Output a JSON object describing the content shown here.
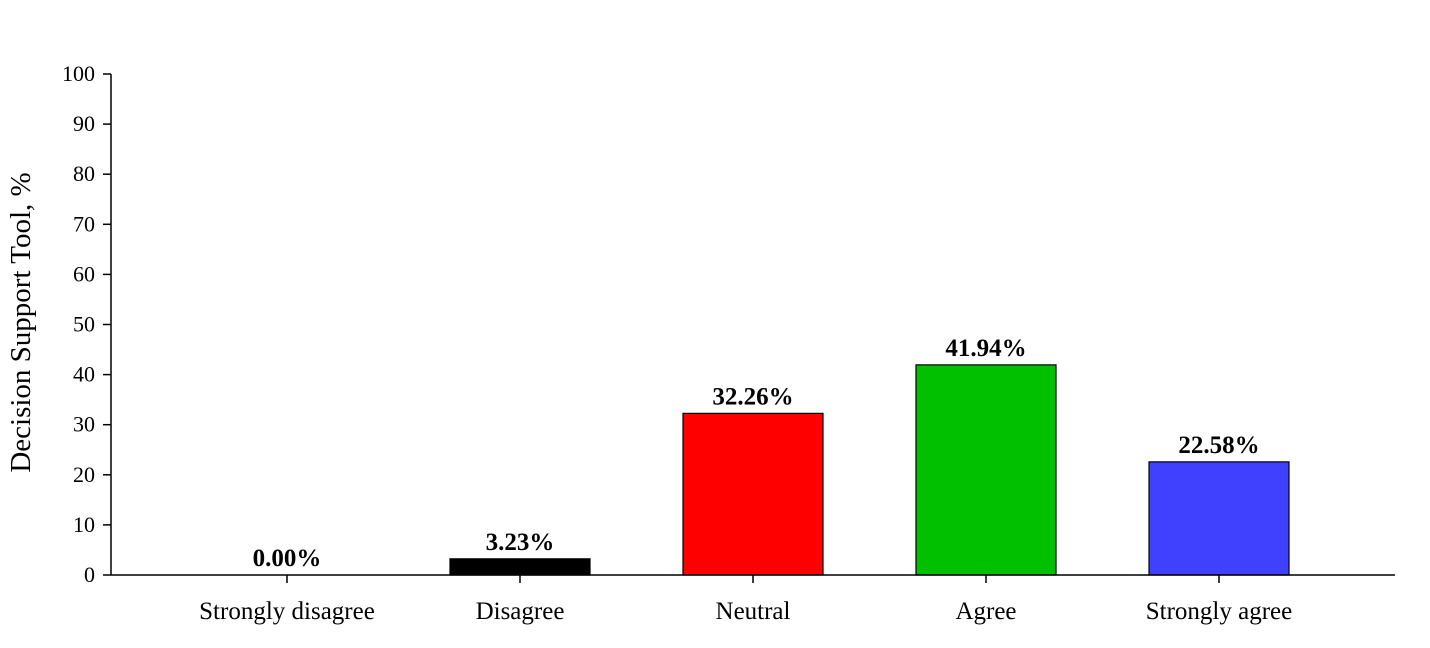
{
  "chart_data": {
    "type": "bar",
    "title": "",
    "xlabel": "",
    "ylabel": "Decision Support Tool, %",
    "ylim": [
      0,
      100
    ],
    "yticks": [
      0,
      10,
      20,
      30,
      40,
      50,
      60,
      70,
      80,
      90,
      100
    ],
    "categories": [
      "Strongly disagree",
      "Disagree",
      "Neutral",
      "Agree",
      "Strongly agree"
    ],
    "values": [
      0.0,
      3.23,
      32.26,
      41.94,
      22.58
    ],
    "data_labels": [
      "0.00%",
      "3.23%",
      "32.26%",
      "41.94%",
      "22.58%"
    ],
    "colors": [
      "#ffffff",
      "#000000",
      "#ff0000",
      "#00c000",
      "#4040ff"
    ],
    "grid": false,
    "legend": "none"
  }
}
